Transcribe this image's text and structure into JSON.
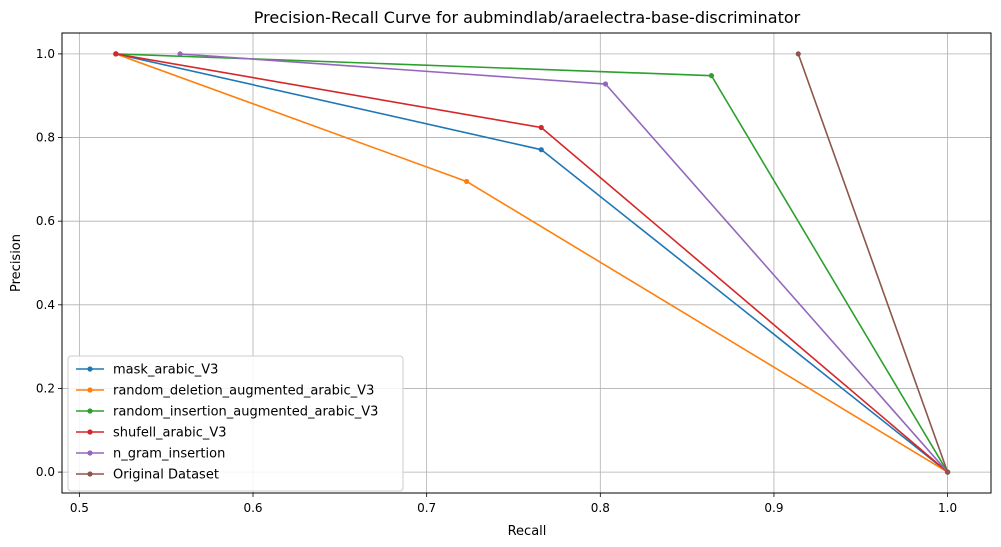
{
  "chart_data": {
    "type": "line",
    "title": "Precision-Recall Curve for aubmindlab/araelectra-base-discriminator",
    "xlabel": "Recall",
    "ylabel": "Precision",
    "xlim": [
      0.49,
      1.025
    ],
    "ylim": [
      -0.05,
      1.05
    ],
    "xticks": [
      0.5,
      0.6,
      0.7,
      0.8,
      0.9,
      1.0
    ],
    "yticks": [
      0.0,
      0.2,
      0.4,
      0.6,
      0.8,
      1.0
    ],
    "xtick_labels": [
      "0.5",
      "0.6",
      "0.7",
      "0.8",
      "0.9",
      "1.0"
    ],
    "ytick_labels": [
      "0.0",
      "0.2",
      "0.4",
      "0.6",
      "0.8",
      "1.0"
    ],
    "grid": true,
    "legend_position": "lower-left",
    "series": [
      {
        "name": "mask_arabic_V3",
        "color": "#1f77b4",
        "x": [
          0.521,
          0.766,
          1.0
        ],
        "y": [
          1.0,
          0.771,
          0.0
        ]
      },
      {
        "name": "random_deletion_augmented_arabic_V3",
        "color": "#ff7f0e",
        "x": [
          0.521,
          0.723,
          1.0
        ],
        "y": [
          1.0,
          0.695,
          0.0
        ]
      },
      {
        "name": "random_insertion_augmented_arabic_V3",
        "color": "#2ca02c",
        "x": [
          0.521,
          0.864,
          1.0
        ],
        "y": [
          1.0,
          0.948,
          0.0
        ]
      },
      {
        "name": "shufell_arabic_V3",
        "color": "#d62728",
        "x": [
          0.521,
          0.766,
          1.0
        ],
        "y": [
          1.0,
          0.824,
          0.0
        ]
      },
      {
        "name": "n_gram_insertion",
        "color": "#9467bd",
        "x": [
          0.558,
          0.803,
          1.0
        ],
        "y": [
          1.0,
          0.928,
          0.0
        ]
      },
      {
        "name": "Original Dataset",
        "color": "#8c564b",
        "x": [
          0.914,
          1.0
        ],
        "y": [
          1.0,
          0.0
        ]
      }
    ]
  }
}
